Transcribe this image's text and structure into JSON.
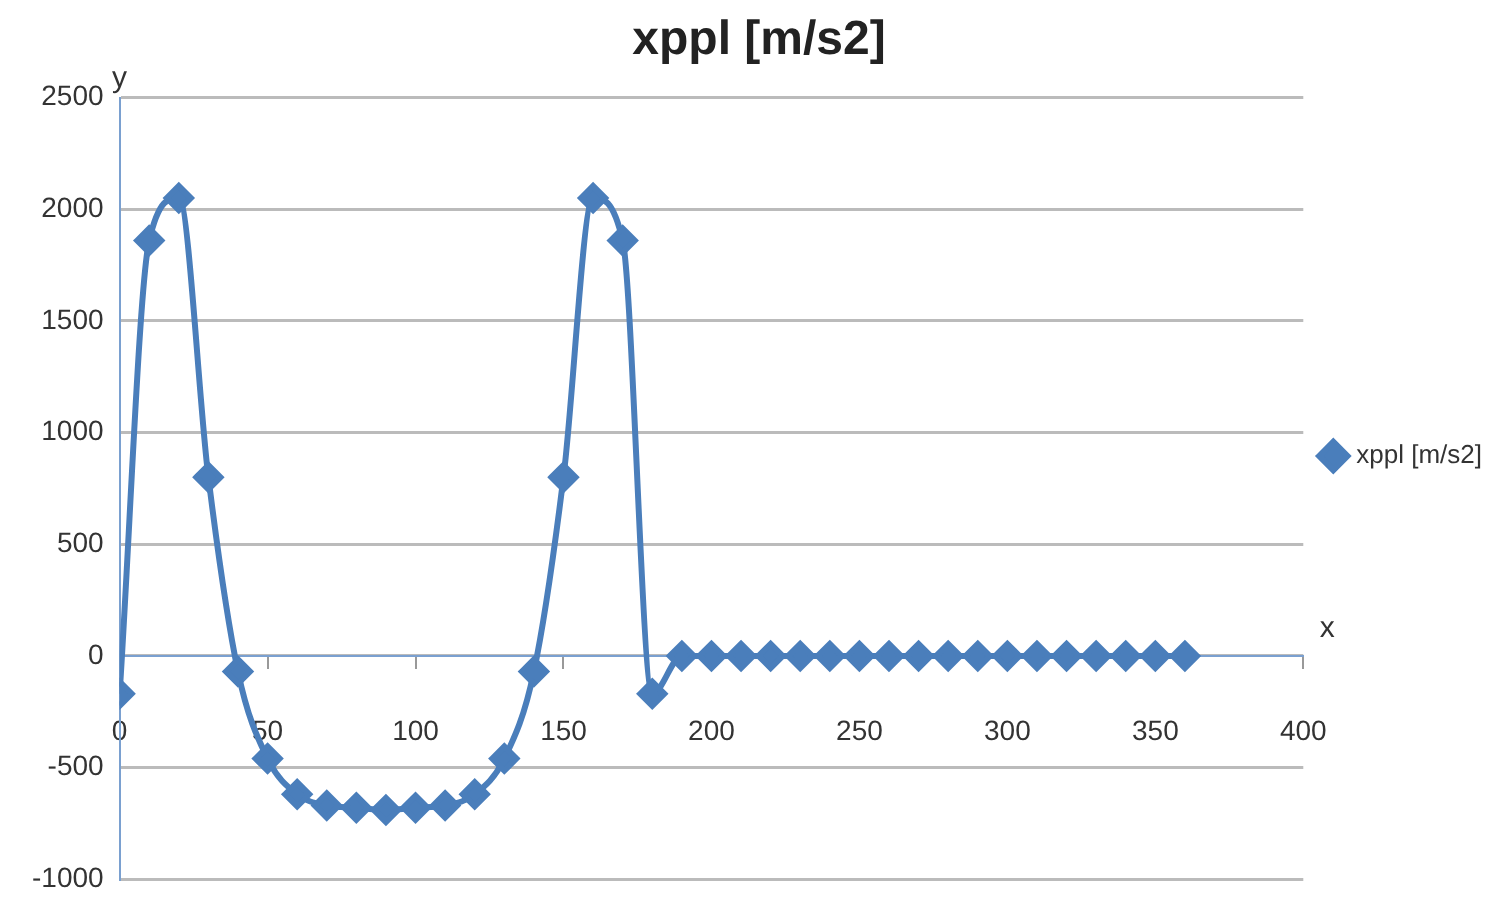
{
  "chart_data": {
    "type": "line",
    "title": "xppl [m/s2]",
    "xlabel": "x",
    "ylabel": "y",
    "x": [
      0,
      10,
      20,
      30,
      40,
      50,
      60,
      70,
      80,
      90,
      100,
      110,
      120,
      130,
      140,
      150,
      160,
      170,
      180,
      190,
      200,
      210,
      220,
      230,
      240,
      250,
      260,
      270,
      280,
      290,
      300,
      310,
      320,
      330,
      340,
      350,
      360
    ],
    "series": [
      {
        "name": "xppl [m/s2]",
        "color": "#4a7ebb",
        "values": [
          -170,
          1860,
          2050,
          800,
          -70,
          -460,
          -620,
          -670,
          -680,
          -690,
          -680,
          -670,
          -620,
          -460,
          -70,
          800,
          2050,
          1860,
          -170,
          0,
          0,
          0,
          0,
          0,
          0,
          0,
          0,
          0,
          0,
          0,
          0,
          0,
          0,
          0,
          0,
          0,
          0
        ]
      }
    ],
    "xlim": [
      0,
      400
    ],
    "xticks": [
      0,
      50,
      100,
      150,
      200,
      250,
      300,
      350,
      400
    ],
    "ylim": [
      -1000,
      2500
    ],
    "yticks": [
      -1000,
      -500,
      0,
      500,
      1000,
      1500,
      2000,
      2500
    ],
    "grid": "y",
    "legend": "right",
    "marker": "diamond",
    "line_style": "solid"
  }
}
